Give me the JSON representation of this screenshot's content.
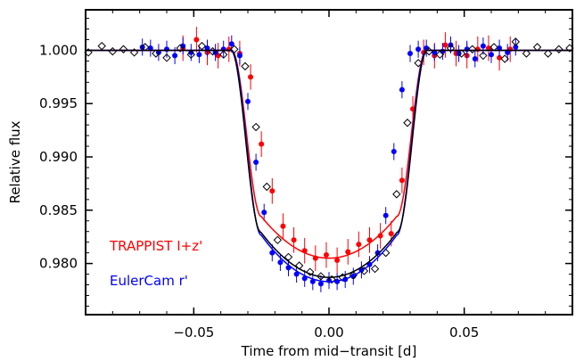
{
  "chart_data": {
    "type": "scatter",
    "xlabel": "Time from mid−transit [d]",
    "ylabel": "Relative flux",
    "xlim": [
      -0.09,
      0.09
    ],
    "ylim": [
      0.9752,
      1.0038
    ],
    "x_ticks": [
      -0.05,
      0.0,
      0.05
    ],
    "x_tick_labels": [
      "−0.05",
      "0.00",
      "0.05"
    ],
    "y_ticks": [
      0.98,
      0.985,
      0.99,
      0.995,
      1.0
    ],
    "y_tick_labels": [
      "0.980",
      "0.985",
      "0.990",
      "0.995",
      "1.000"
    ],
    "grid": false,
    "legend_position": "bottom-left",
    "colors": {
      "trappist": "#ff0000",
      "eulercam": "#0000ff",
      "model": "#000000"
    },
    "series": [
      {
        "name": "TRAPPIST I+z'",
        "marker": "filled-circle",
        "color": "#ff0000",
        "x": [
          -0.054,
          -0.049,
          -0.045,
          -0.041,
          -0.037,
          -0.033,
          -0.029,
          -0.025,
          -0.021,
          -0.017,
          -0.013,
          -0.009,
          -0.005,
          -0.001,
          0.003,
          0.007,
          0.011,
          0.015,
          0.019,
          0.023,
          0.027,
          0.031,
          0.035,
          0.039,
          0.043,
          0.047,
          0.051,
          0.055,
          0.059,
          0.063,
          0.067
        ],
        "y": [
          1.0002,
          1.001,
          0.9998,
          0.9995,
          1.0001,
          0.9997,
          0.9975,
          0.9912,
          0.9868,
          0.9835,
          0.9822,
          0.9812,
          0.9805,
          0.9808,
          0.9803,
          0.9811,
          0.9818,
          0.9822,
          0.9826,
          0.9828,
          0.9878,
          0.9945,
          0.9998,
          0.9995,
          1.0005,
          0.9997,
          0.9995,
          1.0001,
          1.0002,
          0.9993,
          1.0001
        ],
        "err": [
          0.0012,
          0.0012,
          0.0012,
          0.0012,
          0.0012,
          0.0012,
          0.0012,
          0.0012,
          0.0012,
          0.0012,
          0.0012,
          0.0012,
          0.0012,
          0.0012,
          0.0012,
          0.0012,
          0.0012,
          0.0012,
          0.0012,
          0.0012,
          0.0012,
          0.0012,
          0.0012,
          0.0012,
          0.0012,
          0.0012,
          0.0012,
          0.0012,
          0.0012,
          0.0012,
          0.0012
        ]
      },
      {
        "name": "EulerCam r'",
        "marker": "filled-circle",
        "color": "#0000ff",
        "x": [
          -0.069,
          -0.066,
          -0.063,
          -0.06,
          -0.057,
          -0.054,
          -0.051,
          -0.048,
          -0.045,
          -0.042,
          -0.039,
          -0.036,
          -0.033,
          -0.03,
          -0.027,
          -0.024,
          -0.021,
          -0.018,
          -0.015,
          -0.012,
          -0.009,
          -0.006,
          -0.003,
          0.0,
          0.003,
          0.006,
          0.009,
          0.012,
          0.015,
          0.018,
          0.021,
          0.024,
          0.027,
          0.03,
          0.033,
          0.036,
          0.039,
          0.042,
          0.045,
          0.048,
          0.051,
          0.054,
          0.057,
          0.06,
          0.063,
          0.066,
          0.069
        ],
        "y": [
          1.0003,
          1.0002,
          0.9998,
          1.0001,
          0.9995,
          1.0004,
          0.9998,
          0.9996,
          1.0002,
          0.9998,
          1.0001,
          1.0006,
          0.9995,
          0.9952,
          0.9895,
          0.9848,
          0.981,
          0.9801,
          0.9796,
          0.979,
          0.9786,
          0.9783,
          0.9781,
          0.9784,
          0.9783,
          0.9785,
          0.9788,
          0.9794,
          0.9799,
          0.981,
          0.9845,
          0.9905,
          0.9963,
          0.9997,
          1.0001,
          1.0002,
          0.9998,
          0.9999,
          1.0005,
          0.9997,
          1.0001,
          0.9992,
          1.0004,
          0.9996,
          1.0002,
          0.9998,
          1.0003
        ],
        "err": [
          0.0008,
          0.0008,
          0.0008,
          0.0008,
          0.0008,
          0.0008,
          0.0008,
          0.0008,
          0.0008,
          0.0008,
          0.0008,
          0.0008,
          0.0008,
          0.0008,
          0.0008,
          0.0008,
          0.0008,
          0.0008,
          0.0008,
          0.0008,
          0.0008,
          0.0008,
          0.0008,
          0.0008,
          0.0008,
          0.0008,
          0.0008,
          0.0008,
          0.0008,
          0.0008,
          0.0008,
          0.0008,
          0.0008,
          0.0008,
          0.0008,
          0.0008,
          0.0008,
          0.0008,
          0.0008,
          0.0008,
          0.0008,
          0.0008,
          0.0008,
          0.0008,
          0.0008,
          0.0008,
          0.0008
        ]
      },
      {
        "marker": "open-diamond",
        "color": "#000000",
        "x": [
          -0.089,
          -0.084,
          -0.08,
          -0.076,
          -0.072,
          -0.068,
          -0.064,
          -0.06,
          -0.055,
          -0.051,
          -0.047,
          -0.043,
          -0.039,
          -0.035,
          -0.031,
          -0.027,
          -0.023,
          -0.019,
          -0.015,
          -0.011,
          -0.007,
          -0.003,
          0.001,
          0.005,
          0.009,
          0.013,
          0.017,
          0.021,
          0.025,
          0.029,
          0.033,
          0.037,
          0.041,
          0.045,
          0.049,
          0.053,
          0.057,
          0.061,
          0.065,
          0.069,
          0.073,
          0.077,
          0.081,
          0.085,
          0.089
        ],
        "y": [
          0.9998,
          1.0004,
          0.9999,
          1.0001,
          0.9998,
          1.0003,
          0.9997,
          0.9993,
          1.0002,
          0.9996,
          1.0004,
          0.9999,
          0.9996,
          1.0001,
          0.9985,
          0.9928,
          0.9872,
          0.9822,
          0.9806,
          0.9798,
          0.9792,
          0.9788,
          0.9785,
          0.9787,
          0.9789,
          0.9793,
          0.9795,
          0.981,
          0.9865,
          0.9932,
          0.9988,
          0.9999,
          0.9996,
          1.0002,
          0.9997,
          1.0001,
          0.9995,
          1.0003,
          0.9992,
          1.0008,
          0.9997,
          1.0003,
          0.9997,
          1.0001,
          1.0002
        ]
      }
    ],
    "models": [
      {
        "color": "#ff0000",
        "depth": 0.0195,
        "t14": 0.072,
        "t_ingress": 0.011
      },
      {
        "color": "#0000ff",
        "depth": 0.0217,
        "t14": 0.072,
        "t_ingress": 0.011
      },
      {
        "color": "#000000",
        "depth": 0.0213,
        "t14": 0.0725,
        "t_ingress": 0.011
      }
    ]
  }
}
